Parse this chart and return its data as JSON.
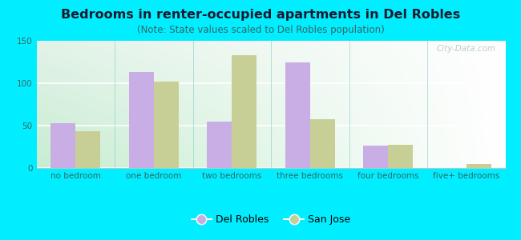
{
  "title": "Bedrooms in renter-occupied apartments in Del Robles",
  "subtitle": "(Note: State values scaled to Del Robles population)",
  "categories": [
    "no bedroom",
    "one bedroom",
    "two bedrooms",
    "three bedrooms",
    "four bedrooms",
    "five+ bedrooms"
  ],
  "del_robles_values": [
    53,
    113,
    55,
    125,
    26,
    0
  ],
  "san_jose_values": [
    43,
    102,
    133,
    58,
    27,
    5
  ],
  "del_robles_color": "#c9aee5",
  "san_jose_color": "#c8cf96",
  "background_outer": "#00eeff",
  "ylim": [
    0,
    150
  ],
  "yticks": [
    0,
    50,
    100,
    150
  ],
  "bar_width": 0.32,
  "title_fontsize": 11.5,
  "subtitle_fontsize": 8.5,
  "tick_fontsize": 7.5,
  "legend_fontsize": 9,
  "watermark_text": "City-Data.com"
}
